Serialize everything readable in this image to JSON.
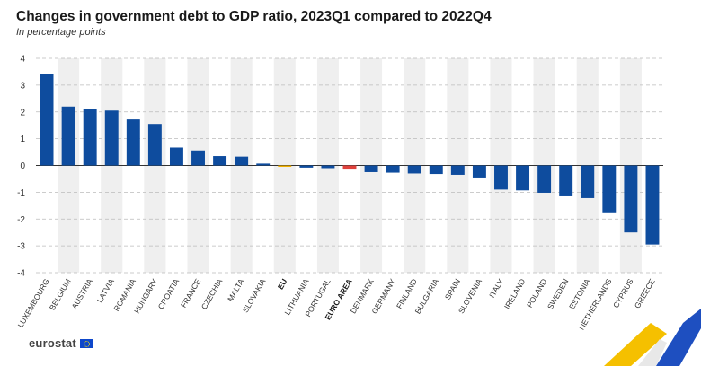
{
  "header": {
    "title": "Changes in government debt to GDP ratio, 2023Q1 compared to 2022Q4",
    "subtitle": "In percentage points"
  },
  "footer": {
    "logo_text": "eurostat"
  },
  "colors": {
    "bar_country": "#0e4c9e",
    "bar_eu": "#f1b000",
    "bar_euro_area": "#e0413c",
    "grid": "#bbbbbb",
    "band": "#efefef"
  },
  "chart_data": {
    "type": "bar",
    "title": "Changes in government debt to GDP ratio, 2023Q1 compared to 2022Q4",
    "ylabel": "In percentage points",
    "ylim": [
      -4,
      4
    ],
    "yticks": [
      4,
      3,
      2,
      1,
      0,
      -1,
      -2,
      -3,
      -4
    ],
    "grid": true,
    "categories": [
      "LUXEMBOURG",
      "BELGIUM",
      "AUSTRIA",
      "LATVIA",
      "ROMANIA",
      "HUNGARY",
      "CROATIA",
      "FRANCE",
      "CZECHIA",
      "MALTA",
      "SLOVAKIA",
      "EU",
      "LITHUANIA",
      "PORTUGAL",
      "EURO AREA",
      "DENMARK",
      "GERMANY",
      "FINLAND",
      "BULGARIA",
      "SPAIN",
      "SLOVENIA",
      "ITALY",
      "IRELAND",
      "POLAND",
      "SWEDEN",
      "ESTONIA",
      "NETHERLANDS",
      "CYPRUS",
      "GREECE"
    ],
    "values": [
      3.4,
      2.2,
      2.1,
      2.05,
      1.72,
      1.55,
      0.67,
      0.56,
      0.35,
      0.33,
      0.07,
      -0.05,
      -0.08,
      -0.1,
      -0.12,
      -0.25,
      -0.27,
      -0.3,
      -0.32,
      -0.35,
      -0.45,
      -0.9,
      -0.93,
      -1.02,
      -1.12,
      -1.22,
      -1.75,
      -2.5,
      -2.95
    ],
    "highlight": {
      "EU": "bar_eu",
      "EURO AREA": "bar_euro_area"
    },
    "bold_categories": [
      "EU",
      "EURO AREA"
    ]
  }
}
